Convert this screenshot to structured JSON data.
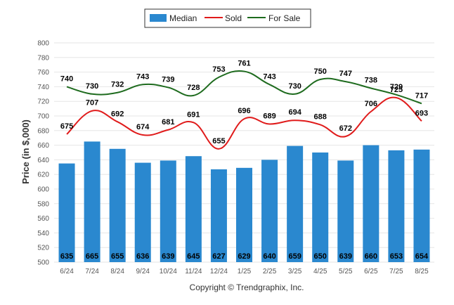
{
  "chart_data": {
    "type": "bar",
    "title": "",
    "xlabel": "",
    "ylabel": "Price (in $,000)",
    "ylim": [
      500,
      800
    ],
    "yticks": [
      500,
      520,
      540,
      560,
      580,
      600,
      620,
      640,
      660,
      680,
      700,
      720,
      740,
      760,
      780,
      800
    ],
    "grid": true,
    "legend_position": "top-center",
    "categories": [
      "6/24",
      "7/24",
      "8/24",
      "9/24",
      "10/24",
      "11/24",
      "12/24",
      "1/25",
      "2/25",
      "3/25",
      "4/25",
      "5/25",
      "6/25",
      "7/25",
      "8/25"
    ],
    "series": [
      {
        "name": "Median",
        "kind": "bar",
        "color": "#2a88cf",
        "values": [
          635,
          665,
          655,
          636,
          639,
          645,
          627,
          629,
          640,
          659,
          650,
          639,
          660,
          653,
          654
        ]
      },
      {
        "name": "Sold",
        "kind": "line",
        "color": "#e01b1b",
        "values": [
          675,
          707,
          692,
          674,
          681,
          691,
          655,
          696,
          689,
          694,
          688,
          672,
          706,
          725,
          693
        ]
      },
      {
        "name": "For Sale",
        "kind": "line",
        "color": "#1e6b1e",
        "values": [
          740,
          730,
          732,
          743,
          739,
          728,
          753,
          761,
          743,
          730,
          750,
          747,
          738,
          729,
          717
        ]
      }
    ],
    "annotation": "Copyright © Trendgraphix, Inc."
  }
}
